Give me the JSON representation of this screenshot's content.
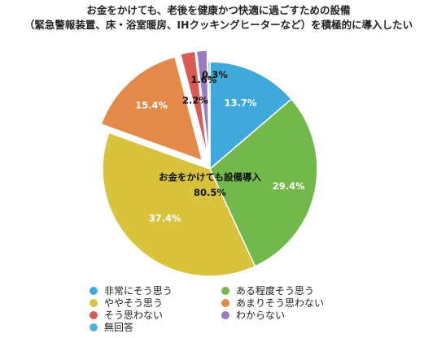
{
  "title_lines": [
    "お金をかけても、老後を健康かつ快適に過ごすための設備",
    "（緊急警報装置、床・浴室暖房、IHクッキングヒーターなど）を積極的に導入したい"
  ],
  "chart_data": {
    "type": "pie",
    "categories": [
      "非常にそう思う",
      "ある程度そう思う",
      "ややそう思う",
      "あまりそう思わない",
      "そう思わない",
      "わからない",
      "無回答"
    ],
    "values": [
      13.7,
      29.4,
      37.4,
      15.4,
      2.2,
      1.6,
      0.3
    ],
    "value_labels": [
      "13.7%",
      "29.4%",
      "37.4%",
      "15.4%",
      "2.2%",
      "1.6%",
      "0.3%"
    ],
    "colors": [
      "#3fa9dc",
      "#72b84a",
      "#d9c23c",
      "#e3894a",
      "#d95a54",
      "#9a7bbd",
      "#4db3d6"
    ],
    "exploded": [
      false,
      false,
      false,
      true,
      true,
      true,
      false
    ],
    "start_angle_deg": 0,
    "direction": "clockwise",
    "annotation": {
      "label": "お金をかけても設備導入",
      "value": "80.5%"
    },
    "legend_position": "bottom"
  }
}
